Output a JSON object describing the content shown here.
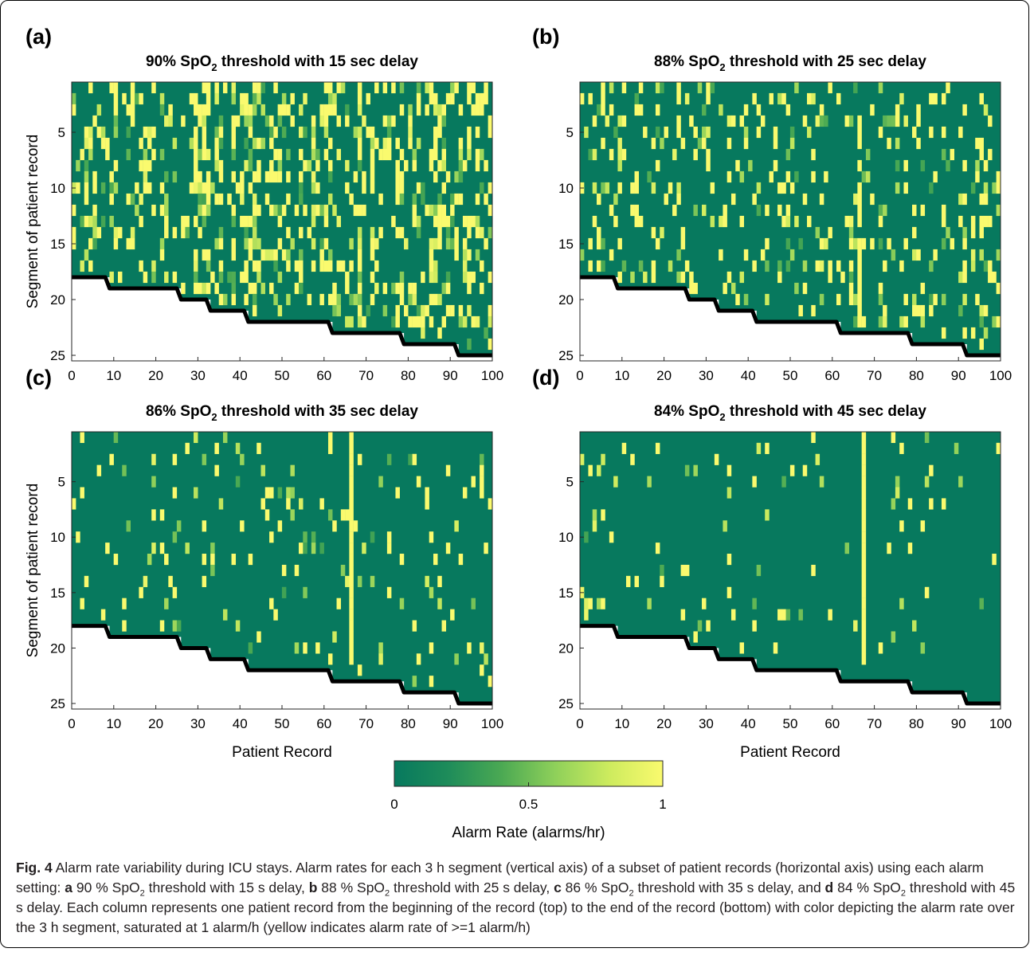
{
  "figure": {
    "colormap": {
      "stops": [
        "#07795e",
        "#1e8c5a",
        "#4ba953",
        "#8fd05a",
        "#cdeb5e",
        "#fafa6e"
      ]
    },
    "colorbar": {
      "ticks": [
        "0",
        "0.5",
        "1"
      ],
      "label": "Alarm Rate (alarms/hr)",
      "range": [
        0,
        1
      ]
    },
    "shared_axes": {
      "ylabel": "Segment of patient record",
      "xlabel": "Patient Record",
      "xticks": [
        "0",
        "10",
        "20",
        "30",
        "40",
        "50",
        "60",
        "70",
        "80",
        "90",
        "100"
      ],
      "yticks": [
        "5",
        "10",
        "15",
        "20",
        "25"
      ]
    },
    "caption": {
      "fig_label": "Fig. 4",
      "title": "Alarm rate variability during ICU stays.",
      "body_1": "Alarm rates for each 3 h segment (vertical axis) of a subset of patient records (horizontal axis) using each alarm setting: ",
      "a_bold": "a",
      "a_text_1": " 90 % SpO",
      "a_text_2": " threshold with 15 s delay, ",
      "b_bold": "b",
      "b_text_1": " 88 % SpO",
      "b_text_2": " threshold with 25 s delay, ",
      "c_bold": "c",
      "c_text_1": " 86 % SpO",
      "c_text_2": " threshold with 35 s delay, and ",
      "d_bold": "d",
      "d_text_1": " 84 % SpO",
      "d_text_2": " threshold with 45 s delay. Each column represents one patient record from the beginning of the record (top) to the end of the record (bottom) with color depicting the alarm rate over the 3 h segment, saturated at 1 alarm/h (yellow indicates alarm rate of >=1 alarm/h)",
      "sub2": "2"
    }
  },
  "chart_data": [
    {
      "type": "heatmap",
      "panel_label": "(a)",
      "title": "90% SpO2 threshold with 15 sec delay",
      "title_parts": [
        "90% SpO",
        "2",
        " threshold with 15 sec delay"
      ],
      "xlabel": "",
      "ylabel": "Segment of patient record",
      "xlim": [
        0,
        100
      ],
      "ylim": [
        25,
        1
      ],
      "x_ticks": [
        0,
        10,
        20,
        30,
        40,
        50,
        60,
        70,
        80,
        90,
        100
      ],
      "y_ticks": [
        5,
        10,
        15,
        20,
        25
      ],
      "value_range": [
        0,
        1
      ],
      "alarm_density": 0.33,
      "record_end_boundary": [
        [
          0,
          17.5
        ],
        [
          8,
          17.5
        ],
        [
          9,
          18.5
        ],
        [
          25,
          18.5
        ],
        [
          26,
          19.5
        ],
        [
          32,
          19.5
        ],
        [
          33,
          20.5
        ],
        [
          41,
          20.5
        ],
        [
          42,
          21.5
        ],
        [
          61,
          21.5
        ],
        [
          62,
          22.5
        ],
        [
          78,
          22.5
        ],
        [
          79,
          23.5
        ],
        [
          91,
          23.5
        ],
        [
          92,
          24.5
        ],
        [
          100,
          24.5
        ]
      ],
      "seed": 11
    },
    {
      "type": "heatmap",
      "panel_label": "(b)",
      "title": "88% SpO2 threshold with 25 sec delay",
      "title_parts": [
        "88% SpO",
        "2",
        " threshold with 25 sec delay"
      ],
      "xlabel": "",
      "ylabel": "",
      "xlim": [
        0,
        100
      ],
      "ylim": [
        25,
        1
      ],
      "x_ticks": [
        0,
        10,
        20,
        30,
        40,
        50,
        60,
        70,
        80,
        90,
        100
      ],
      "y_ticks": [
        5,
        10,
        15,
        20,
        25
      ],
      "value_range": [
        0,
        1
      ],
      "alarm_density": 0.16,
      "record_end_boundary": [
        [
          0,
          17.5
        ],
        [
          8,
          17.5
        ],
        [
          9,
          18.5
        ],
        [
          25,
          18.5
        ],
        [
          26,
          19.5
        ],
        [
          32,
          19.5
        ],
        [
          33,
          20.5
        ],
        [
          41,
          20.5
        ],
        [
          42,
          21.5
        ],
        [
          61,
          21.5
        ],
        [
          62,
          22.5
        ],
        [
          78,
          22.5
        ],
        [
          79,
          23.5
        ],
        [
          91,
          23.5
        ],
        [
          92,
          24.5
        ],
        [
          100,
          24.5
        ]
      ],
      "seed": 23
    },
    {
      "type": "heatmap",
      "panel_label": "(c)",
      "title": "86% SpO2 threshold with 35 sec delay",
      "title_parts": [
        "86% SpO",
        "2",
        " threshold with 35 sec delay"
      ],
      "xlabel": "Patient Record",
      "ylabel": "Segment of patient record",
      "xlim": [
        0,
        100
      ],
      "ylim": [
        25,
        1
      ],
      "x_ticks": [
        0,
        10,
        20,
        30,
        40,
        50,
        60,
        70,
        80,
        90,
        100
      ],
      "y_ticks": [
        5,
        10,
        15,
        20,
        25
      ],
      "value_range": [
        0,
        1
      ],
      "alarm_density": 0.07,
      "record_end_boundary": [
        [
          0,
          17.5
        ],
        [
          8,
          17.5
        ],
        [
          9,
          18.5
        ],
        [
          25,
          18.5
        ],
        [
          26,
          19.5
        ],
        [
          32,
          19.5
        ],
        [
          33,
          20.5
        ],
        [
          41,
          20.5
        ],
        [
          42,
          21.5
        ],
        [
          61,
          21.5
        ],
        [
          62,
          22.5
        ],
        [
          78,
          22.5
        ],
        [
          79,
          23.5
        ],
        [
          91,
          23.5
        ],
        [
          92,
          24.5
        ],
        [
          100,
          24.5
        ]
      ],
      "seed": 37
    },
    {
      "type": "heatmap",
      "panel_label": "(d)",
      "title": "84% SpO2 threshold with 45 sec delay",
      "title_parts": [
        "84% SpO",
        "2",
        " threshold with 45 sec delay"
      ],
      "xlabel": "Patient Record",
      "ylabel": "",
      "xlim": [
        0,
        100
      ],
      "ylim": [
        25,
        1
      ],
      "x_ticks": [
        0,
        10,
        20,
        30,
        40,
        50,
        60,
        70,
        80,
        90,
        100
      ],
      "y_ticks": [
        5,
        10,
        15,
        20,
        25
      ],
      "value_range": [
        0,
        1
      ],
      "alarm_density": 0.045,
      "record_end_boundary": [
        [
          0,
          17.5
        ],
        [
          8,
          17.5
        ],
        [
          9,
          18.5
        ],
        [
          25,
          18.5
        ],
        [
          26,
          19.5
        ],
        [
          32,
          19.5
        ],
        [
          33,
          20.5
        ],
        [
          41,
          20.5
        ],
        [
          42,
          21.5
        ],
        [
          61,
          21.5
        ],
        [
          62,
          22.5
        ],
        [
          78,
          22.5
        ],
        [
          79,
          23.5
        ],
        [
          91,
          23.5
        ],
        [
          92,
          24.5
        ],
        [
          100,
          24.5
        ]
      ],
      "seed": 51
    }
  ]
}
